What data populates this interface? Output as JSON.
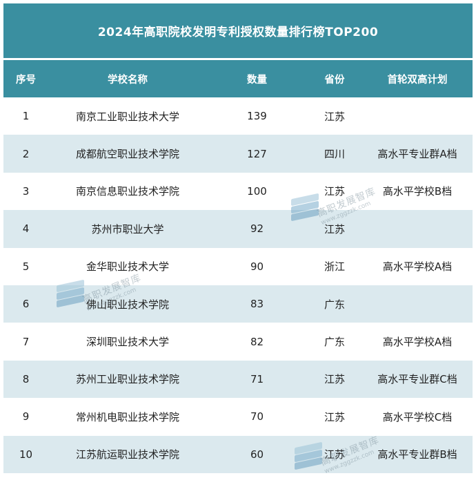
{
  "title": "2024年高职院校发明专利授权数量排行榜TOP200",
  "headers": [
    "序号",
    "学校名称",
    "数量",
    "省份",
    "首轮双高计划"
  ],
  "rows": [
    {
      "rank": "1",
      "school": "南京工业职业技术大学",
      "count": "139",
      "province": "江苏",
      "plan": ""
    },
    {
      "rank": "2",
      "school": "成都航空职业技术学院",
      "count": "127",
      "province": "四川",
      "plan": "高水平专业群A档"
    },
    {
      "rank": "3",
      "school": "南京信息职业技术学院",
      "count": "100",
      "province": "江苏",
      "plan": "高水平学校B档"
    },
    {
      "rank": "4",
      "school": "苏州市职业大学",
      "count": "92",
      "province": "江苏",
      "plan": ""
    },
    {
      "rank": "5",
      "school": "金华职业技术大学",
      "count": "90",
      "province": "浙江",
      "plan": "高水平学校A档"
    },
    {
      "rank": "6",
      "school": "佛山职业技术学院",
      "count": "83",
      "province": "广东",
      "plan": ""
    },
    {
      "rank": "7",
      "school": "深圳职业技术大学",
      "count": "82",
      "province": "广东",
      "plan": "高水平学校A档"
    },
    {
      "rank": "8",
      "school": "苏州工业职业技术学院",
      "count": "71",
      "province": "江苏",
      "plan": "高水平专业群C档"
    },
    {
      "rank": "9",
      "school": "常州机电职业技术学院",
      "count": "70",
      "province": "江苏",
      "plan": "高水平学校C档"
    },
    {
      "rank": "10",
      "school": "江苏航运职业技术学院",
      "count": "60",
      "province": "江苏",
      "plan": "高水平专业群B档"
    }
  ],
  "watermark": {
    "name": "高职发展智库",
    "url": "www.zggzzk.com"
  },
  "colors": {
    "header": "#3a8fa0",
    "stripe": "#dbe9ee"
  }
}
